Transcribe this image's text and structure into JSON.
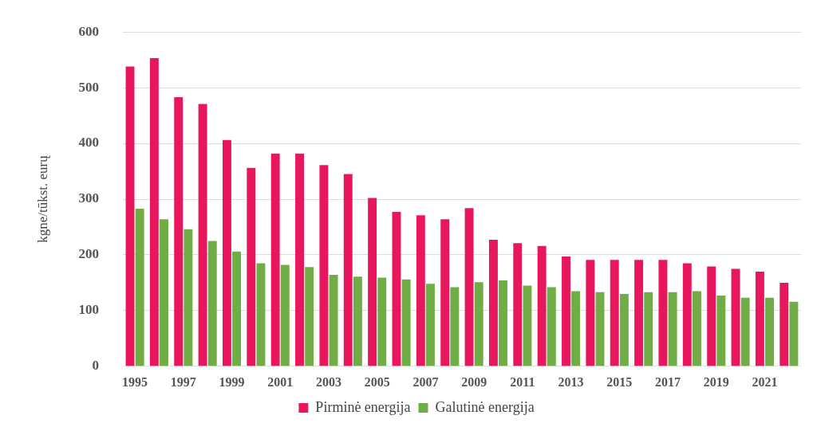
{
  "chart_data": {
    "type": "bar",
    "ylabel": "kgne/tūkst. eurų",
    "categories": [
      "1995",
      null,
      "1997",
      null,
      "1999",
      null,
      "2001",
      null,
      "2003",
      null,
      "2005",
      null,
      "2007",
      null,
      "2009",
      null,
      "2011",
      null,
      "2013",
      null,
      "2015",
      null,
      "2017",
      null,
      "2019",
      null,
      "2021",
      null
    ],
    "series": [
      {
        "name": "Pirminė energija",
        "color": "#e8175d",
        "values": [
          538,
          553,
          483,
          471,
          406,
          356,
          382,
          382,
          361,
          345,
          302,
          277,
          271,
          264,
          284,
          227,
          221,
          216,
          197,
          191,
          191,
          191,
          191,
          185,
          179,
          175,
          170,
          150
        ]
      },
      {
        "name": "Galutinė energija",
        "color": "#70ad47",
        "values": [
          283,
          264,
          246,
          225,
          206,
          185,
          182,
          178,
          164,
          161,
          159,
          156,
          148,
          142,
          151,
          154,
          145,
          142,
          135,
          133,
          130,
          133,
          133,
          135,
          127,
          123,
          123,
          116
        ]
      }
    ],
    "ylim": [
      0,
      600
    ],
    "yticks": [
      0,
      100,
      200,
      300,
      400,
      500,
      600
    ],
    "grid": "y",
    "legend": "bottom"
  }
}
